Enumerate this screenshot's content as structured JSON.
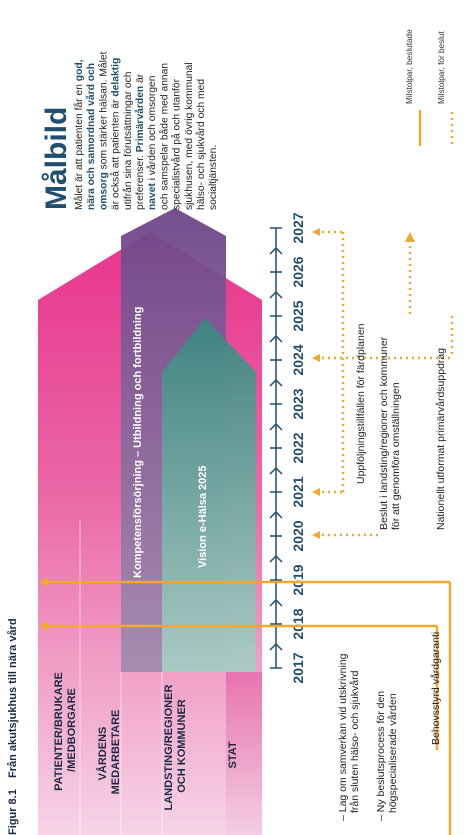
{
  "figure": {
    "number": "Figur 8.1",
    "title": "Från akutsjukhus till nära vård"
  },
  "stakeholders": [
    "PATIENTER/BRUKARE /MEDBORGARE",
    "VÅRDENS MEDARBETARE",
    "LANDSTING/REGIONER OCH KOMMUNER",
    "STAT"
  ],
  "years": [
    "2017",
    "2018",
    "2019",
    "2020",
    "2021",
    "2022",
    "2023",
    "2024",
    "2025",
    "2026",
    "2027"
  ],
  "bands": {
    "kompetens": "Kompetensförsörjning – Utbildning och fortbildning",
    "ehalsa": "Vision e-Hälsa 2025"
  },
  "milestones": {
    "lag_line1": "– Lag om samverkan vid utskrivning",
    "lag_line2": "från sluten hälso- och sjukvård",
    "ny_line1": "– Ny beslutsprocess för den",
    "ny_line2": "högspecialiserade vården",
    "behovsstyrd": "Behovsstyrd vårdgaranti",
    "beslut_line1": "Beslut i landsting/regioner och kommuner",
    "beslut_line2": "för att genomföra omställningen",
    "nationellt": "Nationellt utformat primärvårdsuppdrag",
    "uppfoljning": "Uppföljningstillfällen för färdplanen"
  },
  "goal": {
    "heading": "Målbild",
    "lines": [
      [
        {
          "t": "Målet är att patienten får en "
        },
        {
          "t": "god,",
          "b": 1
        }
      ],
      [
        {
          "t": "nära och samordnad vård och",
          "b": 1
        }
      ],
      [
        {
          "t": "omsorg",
          "b": 1
        },
        {
          "t": " som stärker hälsan. Målet"
        }
      ],
      [
        {
          "t": "är också att patienten är "
        },
        {
          "t": "delaktig",
          "b": 1
        }
      ],
      [
        {
          "t": "utifrån sina förutsättningar och"
        }
      ],
      [
        {
          "t": "preferenser. "
        },
        {
          "t": "Primärvården",
          "b": 1
        },
        {
          "t": " är"
        }
      ],
      [
        {
          "t": "navet",
          "b": 1
        },
        {
          "t": " i vården och omsorgen"
        }
      ],
      [
        {
          "t": "och samspelar både med annan"
        }
      ],
      [
        {
          "t": "specialistvård på och utanför"
        }
      ],
      [
        {
          "t": "sjukhusen, med övrig kommunal"
        }
      ],
      [
        {
          "t": "hälso- och sjukvård och med"
        }
      ],
      [
        {
          "t": "socialtjänsten."
        }
      ]
    ]
  },
  "legend": {
    "solid": "Milstolpar, beslutade",
    "dotted": "Milstolpar, för beslut"
  },
  "colors": {
    "pink": "#e8348c",
    "purple": "#7a4a8e",
    "teal": "#3e8a86",
    "orange": "#f0a830",
    "navy": "#1f4e6e"
  }
}
